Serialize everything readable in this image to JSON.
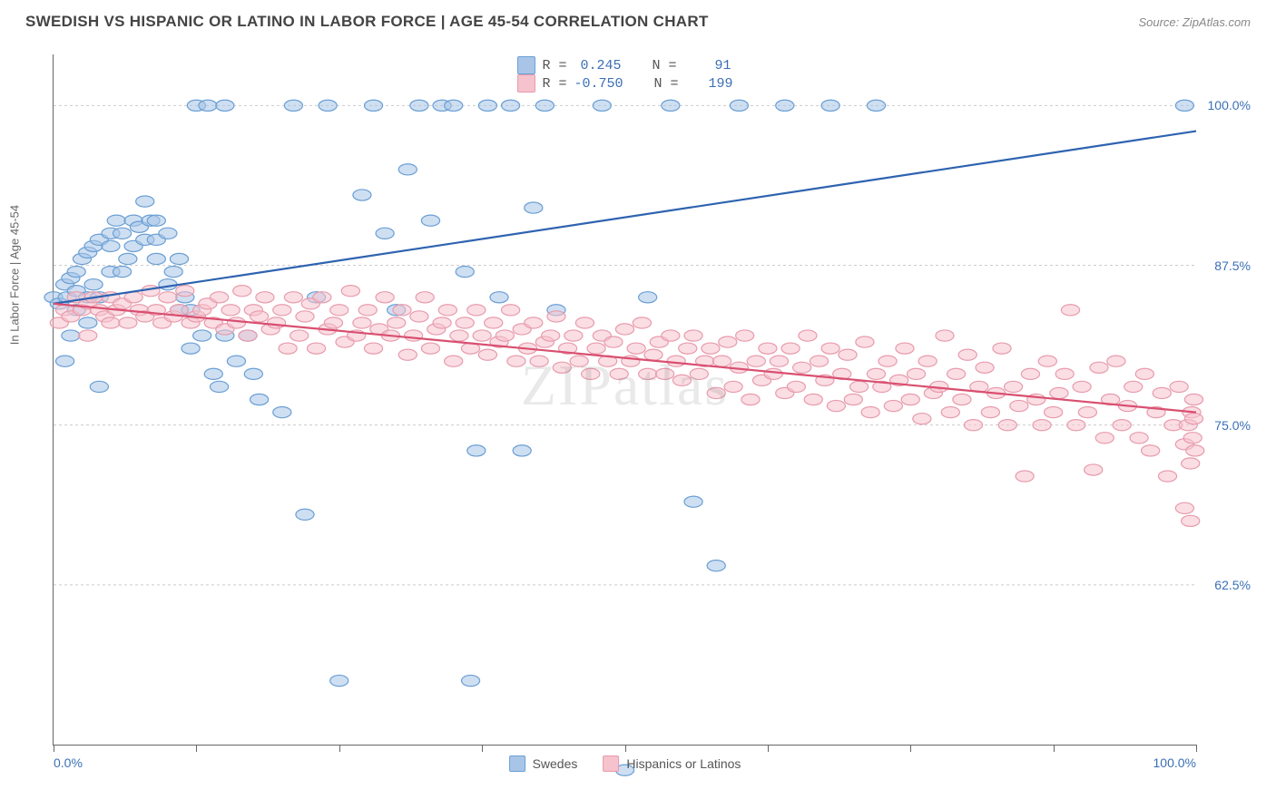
{
  "title": "SWEDISH VS HISPANIC OR LATINO IN LABOR FORCE | AGE 45-54 CORRELATION CHART",
  "source": "Source: ZipAtlas.com",
  "watermark": "ZIPatlas",
  "ylabel": "In Labor Force | Age 45-54",
  "chart": {
    "type": "scatter",
    "xlim": [
      0,
      100
    ],
    "ylim": [
      50,
      104
    ],
    "xtick_positions": [
      0,
      12.5,
      25,
      37.5,
      50,
      62.5,
      75,
      87.5,
      100
    ],
    "xaxis_labels": [
      {
        "v": 0,
        "t": "0.0%"
      },
      {
        "v": 100,
        "t": "100.0%"
      }
    ],
    "ytick_labels": [
      {
        "v": 62.5,
        "t": "62.5%"
      },
      {
        "v": 75.0,
        "t": "75.0%"
      },
      {
        "v": 87.5,
        "t": "87.5%"
      },
      {
        "v": 100.0,
        "t": "100.0%"
      }
    ],
    "grid_color": "#cccccc",
    "background_color": "#ffffff",
    "marker_radius": 8,
    "marker_opacity": 0.55,
    "line_width": 2.2
  },
  "series": [
    {
      "key": "swedes",
      "label": "Swedes",
      "color_fill": "#a8c5e8",
      "color_stroke": "#6a9fd4",
      "line_color": "#2e63b0",
      "R": "0.245",
      "N": "91",
      "trend": {
        "x1": 0,
        "y1": 84.5,
        "x2": 100,
        "y2": 98.0
      },
      "points": [
        [
          0,
          85
        ],
        [
          0.5,
          84.5
        ],
        [
          1,
          86
        ],
        [
          1,
          80
        ],
        [
          1.2,
          85
        ],
        [
          1.5,
          86.5
        ],
        [
          1.5,
          82
        ],
        [
          2,
          87
        ],
        [
          2,
          84
        ],
        [
          2,
          85.5
        ],
        [
          2.5,
          88
        ],
        [
          3,
          88.5
        ],
        [
          3,
          85
        ],
        [
          3,
          83
        ],
        [
          3.5,
          89
        ],
        [
          3.5,
          86
        ],
        [
          4,
          89.5
        ],
        [
          4,
          85
        ],
        [
          4,
          78
        ],
        [
          5,
          89
        ],
        [
          5,
          90
        ],
        [
          5,
          87
        ],
        [
          5.5,
          91
        ],
        [
          6,
          90
        ],
        [
          6,
          87
        ],
        [
          6.5,
          88
        ],
        [
          7,
          91
        ],
        [
          7,
          89
        ],
        [
          7.5,
          90.5
        ],
        [
          8,
          89.5
        ],
        [
          8,
          92.5
        ],
        [
          8.5,
          91
        ],
        [
          9,
          91
        ],
        [
          9,
          88
        ],
        [
          9,
          89.5
        ],
        [
          10,
          90
        ],
        [
          10,
          86
        ],
        [
          10.5,
          87
        ],
        [
          11,
          88
        ],
        [
          11,
          84
        ],
        [
          11.5,
          85
        ],
        [
          12,
          84
        ],
        [
          12,
          81
        ],
        [
          12.5,
          100
        ],
        [
          13,
          82
        ],
        [
          13.5,
          100
        ],
        [
          14,
          79
        ],
        [
          14.5,
          78
        ],
        [
          15,
          100
        ],
        [
          15,
          82
        ],
        [
          16,
          80
        ],
        [
          17,
          82
        ],
        [
          17.5,
          79
        ],
        [
          18,
          77
        ],
        [
          20,
          76
        ],
        [
          21,
          100
        ],
        [
          22,
          68
        ],
        [
          23,
          85
        ],
        [
          24,
          100
        ],
        [
          25,
          55
        ],
        [
          27,
          93
        ],
        [
          28,
          100
        ],
        [
          29,
          90
        ],
        [
          30,
          84
        ],
        [
          31,
          95
        ],
        [
          32,
          100
        ],
        [
          33,
          91
        ],
        [
          34,
          100
        ],
        [
          35,
          100
        ],
        [
          36,
          87
        ],
        [
          36.5,
          55
        ],
        [
          37,
          73
        ],
        [
          38,
          100
        ],
        [
          39,
          85
        ],
        [
          40,
          100
        ],
        [
          41,
          73
        ],
        [
          42,
          92
        ],
        [
          43,
          100
        ],
        [
          44,
          84
        ],
        [
          48,
          100
        ],
        [
          50,
          48
        ],
        [
          52,
          85
        ],
        [
          54,
          100
        ],
        [
          56,
          69
        ],
        [
          58,
          64
        ],
        [
          60,
          100
        ],
        [
          64,
          100
        ],
        [
          68,
          100
        ],
        [
          72,
          100
        ],
        [
          99,
          100
        ]
      ]
    },
    {
      "key": "hispanics",
      "label": "Hispanics or Latinos",
      "color_fill": "#f5c2cd",
      "color_stroke": "#e89bac",
      "line_color": "#d94f70",
      "R": "-0.750",
      "N": "199",
      "trend": {
        "x1": 0,
        "y1": 84.5,
        "x2": 100,
        "y2": 76.0
      },
      "points": [
        [
          0.5,
          83
        ],
        [
          1,
          84
        ],
        [
          1.5,
          83.5
        ],
        [
          2,
          85
        ],
        [
          2.5,
          84
        ],
        [
          3,
          84.5
        ],
        [
          3,
          82
        ],
        [
          3.5,
          85
        ],
        [
          4,
          84
        ],
        [
          4.5,
          83.5
        ],
        [
          5,
          85
        ],
        [
          5,
          83
        ],
        [
          5.5,
          84
        ],
        [
          6,
          84.5
        ],
        [
          6.5,
          83
        ],
        [
          7,
          85
        ],
        [
          7.5,
          84
        ],
        [
          8,
          83.5
        ],
        [
          8.5,
          85.5
        ],
        [
          9,
          84
        ],
        [
          9.5,
          83
        ],
        [
          10,
          85
        ],
        [
          10.5,
          83.5
        ],
        [
          11,
          84
        ],
        [
          11.5,
          85.5
        ],
        [
          12,
          83
        ],
        [
          12.5,
          83.5
        ],
        [
          13,
          84
        ],
        [
          13.5,
          84.5
        ],
        [
          14,
          83
        ],
        [
          14.5,
          85
        ],
        [
          15,
          82.5
        ],
        [
          15.5,
          84
        ],
        [
          16,
          83
        ],
        [
          16.5,
          85.5
        ],
        [
          17,
          82
        ],
        [
          17.5,
          84
        ],
        [
          18,
          83.5
        ],
        [
          18.5,
          85
        ],
        [
          19,
          82.5
        ],
        [
          19.5,
          83
        ],
        [
          20,
          84
        ],
        [
          20.5,
          81
        ],
        [
          21,
          85
        ],
        [
          21.5,
          82
        ],
        [
          22,
          83.5
        ],
        [
          22.5,
          84.5
        ],
        [
          23,
          81
        ],
        [
          23.5,
          85
        ],
        [
          24,
          82.5
        ],
        [
          24.5,
          83
        ],
        [
          25,
          84
        ],
        [
          25.5,
          81.5
        ],
        [
          26,
          85.5
        ],
        [
          26.5,
          82
        ],
        [
          27,
          83
        ],
        [
          27.5,
          84
        ],
        [
          28,
          81
        ],
        [
          28.5,
          82.5
        ],
        [
          29,
          85
        ],
        [
          29.5,
          82
        ],
        [
          30,
          83
        ],
        [
          30.5,
          84
        ],
        [
          31,
          80.5
        ],
        [
          31.5,
          82
        ],
        [
          32,
          83.5
        ],
        [
          32.5,
          85
        ],
        [
          33,
          81
        ],
        [
          33.5,
          82.5
        ],
        [
          34,
          83
        ],
        [
          34.5,
          84
        ],
        [
          35,
          80
        ],
        [
          35.5,
          82
        ],
        [
          36,
          83
        ],
        [
          36.5,
          81
        ],
        [
          37,
          84
        ],
        [
          37.5,
          82
        ],
        [
          38,
          80.5
        ],
        [
          38.5,
          83
        ],
        [
          39,
          81.5
        ],
        [
          39.5,
          82
        ],
        [
          40,
          84
        ],
        [
          40.5,
          80
        ],
        [
          41,
          82.5
        ],
        [
          41.5,
          81
        ],
        [
          42,
          83
        ],
        [
          42.5,
          80
        ],
        [
          43,
          81.5
        ],
        [
          43.5,
          82
        ],
        [
          44,
          83.5
        ],
        [
          44.5,
          79.5
        ],
        [
          45,
          81
        ],
        [
          45.5,
          82
        ],
        [
          46,
          80
        ],
        [
          46.5,
          83
        ],
        [
          47,
          79
        ],
        [
          47.5,
          81
        ],
        [
          48,
          82
        ],
        [
          48.5,
          80
        ],
        [
          49,
          81.5
        ],
        [
          49.5,
          79
        ],
        [
          50,
          82.5
        ],
        [
          50.5,
          80
        ],
        [
          51,
          81
        ],
        [
          51.5,
          83
        ],
        [
          52,
          79
        ],
        [
          52.5,
          80.5
        ],
        [
          53,
          81.5
        ],
        [
          53.5,
          79
        ],
        [
          54,
          82
        ],
        [
          54.5,
          80
        ],
        [
          55,
          78.5
        ],
        [
          55.5,
          81
        ],
        [
          56,
          82
        ],
        [
          56.5,
          79
        ],
        [
          57,
          80
        ],
        [
          57.5,
          81
        ],
        [
          58,
          77.5
        ],
        [
          58.5,
          80
        ],
        [
          59,
          81.5
        ],
        [
          59.5,
          78
        ],
        [
          60,
          79.5
        ],
        [
          60.5,
          82
        ],
        [
          61,
          77
        ],
        [
          61.5,
          80
        ],
        [
          62,
          78.5
        ],
        [
          62.5,
          81
        ],
        [
          63,
          79
        ],
        [
          63.5,
          80
        ],
        [
          64,
          77.5
        ],
        [
          64.5,
          81
        ],
        [
          65,
          78
        ],
        [
          65.5,
          79.5
        ],
        [
          66,
          82
        ],
        [
          66.5,
          77
        ],
        [
          67,
          80
        ],
        [
          67.5,
          78.5
        ],
        [
          68,
          81
        ],
        [
          68.5,
          76.5
        ],
        [
          69,
          79
        ],
        [
          69.5,
          80.5
        ],
        [
          70,
          77
        ],
        [
          70.5,
          78
        ],
        [
          71,
          81.5
        ],
        [
          71.5,
          76
        ],
        [
          72,
          79
        ],
        [
          72.5,
          78
        ],
        [
          73,
          80
        ],
        [
          73.5,
          76.5
        ],
        [
          74,
          78.5
        ],
        [
          74.5,
          81
        ],
        [
          75,
          77
        ],
        [
          75.5,
          79
        ],
        [
          76,
          75.5
        ],
        [
          76.5,
          80
        ],
        [
          77,
          77.5
        ],
        [
          77.5,
          78
        ],
        [
          78,
          82
        ],
        [
          78.5,
          76
        ],
        [
          79,
          79
        ],
        [
          79.5,
          77
        ],
        [
          80,
          80.5
        ],
        [
          80.5,
          75
        ],
        [
          81,
          78
        ],
        [
          81.5,
          79.5
        ],
        [
          82,
          76
        ],
        [
          82.5,
          77.5
        ],
        [
          83,
          81
        ],
        [
          83.5,
          75
        ],
        [
          84,
          78
        ],
        [
          84.5,
          76.5
        ],
        [
          85,
          71
        ],
        [
          85.5,
          79
        ],
        [
          86,
          77
        ],
        [
          86.5,
          75
        ],
        [
          87,
          80
        ],
        [
          87.5,
          76
        ],
        [
          88,
          77.5
        ],
        [
          88.5,
          79
        ],
        [
          89,
          84
        ],
        [
          89.5,
          75
        ],
        [
          90,
          78
        ],
        [
          90.5,
          76
        ],
        [
          91,
          71.5
        ],
        [
          91.5,
          79.5
        ],
        [
          92,
          74
        ],
        [
          92.5,
          77
        ],
        [
          93,
          80
        ],
        [
          93.5,
          75
        ],
        [
          94,
          76.5
        ],
        [
          94.5,
          78
        ],
        [
          95,
          74
        ],
        [
          95.5,
          79
        ],
        [
          96,
          73
        ],
        [
          96.5,
          76
        ],
        [
          97,
          77.5
        ],
        [
          97.5,
          71
        ],
        [
          98,
          75
        ],
        [
          98.5,
          78
        ],
        [
          99,
          68.5
        ],
        [
          99,
          73.5
        ],
        [
          99.3,
          75
        ],
        [
          99.5,
          72
        ],
        [
          99.5,
          67.5
        ],
        [
          99.6,
          76
        ],
        [
          99.7,
          74
        ],
        [
          99.8,
          77
        ],
        [
          99.8,
          75.5
        ],
        [
          99.9,
          73
        ]
      ]
    }
  ],
  "legend_bottom": [
    {
      "label": "Swedes",
      "fill": "#a8c5e8",
      "stroke": "#6a9fd4"
    },
    {
      "label": "Hispanics or Latinos",
      "fill": "#f5c2cd",
      "stroke": "#e89bac"
    }
  ],
  "stats_labels": {
    "R": "R =",
    "N": "N ="
  }
}
